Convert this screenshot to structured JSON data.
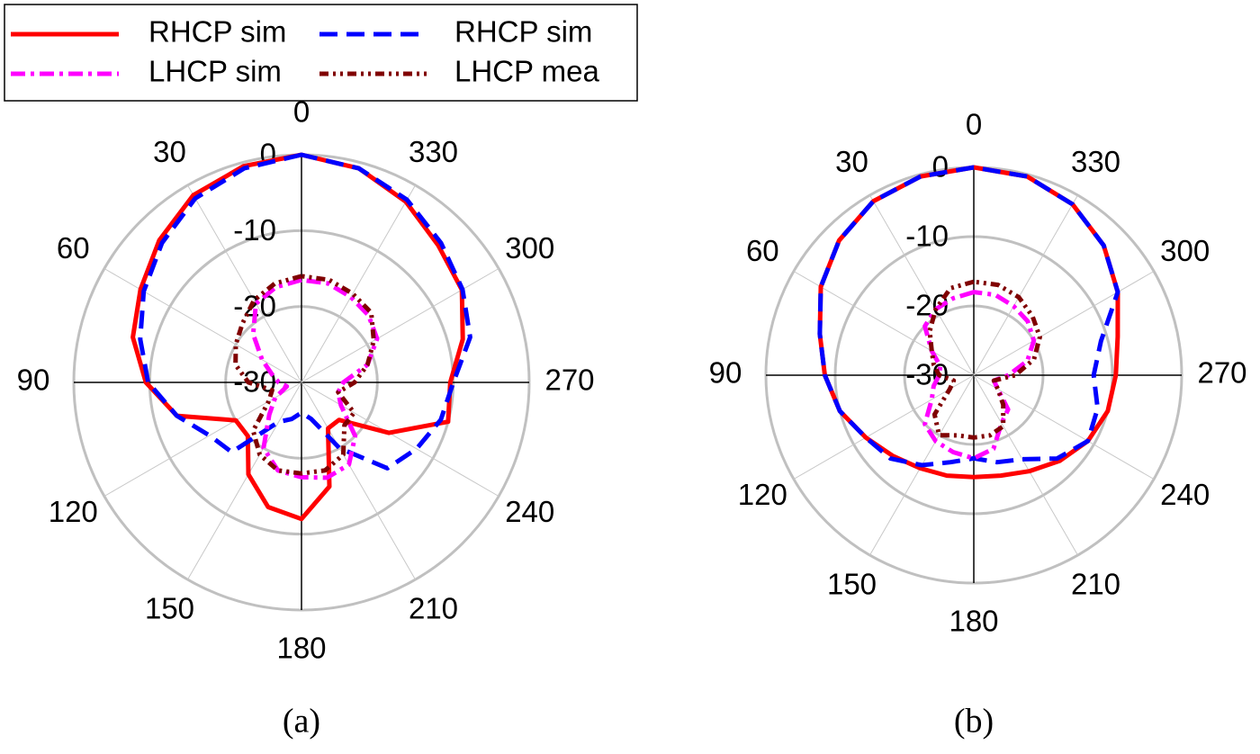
{
  "chart_data": [
    {
      "type": "polar",
      "caption": "(a)",
      "theta": [
        0,
        15,
        30,
        45,
        60,
        75,
        90,
        105,
        120,
        135,
        150,
        165,
        180,
        195,
        210,
        225,
        240,
        255,
        270,
        285,
        300,
        315,
        330,
        345
      ],
      "thetaticks": [
        0,
        30,
        60,
        90,
        120,
        150,
        180,
        210,
        240,
        270,
        300,
        330
      ],
      "rlim": [
        -30,
        0
      ],
      "rticks": [
        0,
        -10,
        -20,
        -30
      ],
      "grid": true,
      "legend": "upper left",
      "series": [
        {
          "name": "RHCP sim",
          "color": "#ff0000",
          "linestyle": "solid",
          "values": [
            0,
            -0.5,
            -1.5,
            -3.5,
            -5.5,
            -7,
            -9.5,
            -13,
            -20,
            -20,
            -16,
            -13,
            -12,
            -15.8,
            -23,
            -23,
            -16.7,
            -10,
            -10.4,
            -8,
            -5.6,
            -4.5,
            -2.5,
            -0.8
          ]
        },
        {
          "name": "RHCP sim",
          "color": "#0000ff",
          "linestyle": "dashed",
          "values": [
            0,
            -0.8,
            -2,
            -4,
            -6,
            -8,
            -9.8,
            -13,
            -16,
            -17,
            -24,
            -25,
            -26,
            -25,
            -20,
            -14,
            -12.5,
            -11,
            -10,
            -7,
            -5.5,
            -4,
            -2.2,
            -0.8
          ]
        },
        {
          "name": "LHCP sim",
          "color": "#ff00ff",
          "linestyle": "dashdot",
          "values": [
            -16.5,
            -17,
            -18,
            -21,
            -24,
            -26,
            -27,
            -28,
            -26,
            -24,
            -20,
            -18,
            -17.5,
            -17,
            -17.5,
            -20,
            -24,
            -25,
            -24.5,
            -21,
            -18.5,
            -17.5,
            -17,
            -16.5
          ]
        },
        {
          "name": "LHCP mea",
          "color": "#800000",
          "linestyle": "dashdotdot",
          "values": [
            -16,
            -16.5,
            -17.5,
            -19,
            -20,
            -21,
            -23,
            -26,
            -25,
            -21,
            -19,
            -18,
            -18,
            -18,
            -19,
            -22,
            -22,
            -25,
            -23,
            -21,
            -19,
            -17,
            -16.5,
            -16
          ]
        }
      ]
    },
    {
      "type": "polar",
      "caption": "(b)",
      "theta": [
        0,
        15,
        30,
        45,
        60,
        75,
        90,
        105,
        120,
        135,
        150,
        165,
        180,
        195,
        210,
        225,
        240,
        255,
        270,
        285,
        300,
        315,
        330,
        345
      ],
      "thetaticks": [
        0,
        30,
        60,
        90,
        120,
        150,
        180,
        210,
        240,
        270,
        300,
        330
      ],
      "rlim": [
        -30,
        0
      ],
      "rticks": [
        0,
        -10,
        -20,
        -30
      ],
      "grid": true,
      "series": [
        {
          "color": "#ff0000",
          "linestyle": "solid",
          "values": [
            0,
            -0.3,
            -1,
            -2.5,
            -4.5,
            -7,
            -8.5,
            -10,
            -12,
            -13.5,
            -14.5,
            -15,
            -15.3,
            -15,
            -14,
            -12.5,
            -11,
            -10,
            -9.5,
            -8.5,
            -6,
            -3.5,
            -1.5,
            -0.3
          ]
        },
        {
          "color": "#0000ff",
          "linestyle": "dashed",
          "values": [
            0,
            -0.3,
            -1,
            -2.5,
            -4.5,
            -7,
            -8.5,
            -10,
            -12,
            -13,
            -15,
            -17,
            -18,
            -17,
            -16,
            -13,
            -11,
            -11.5,
            -12.7,
            -11,
            -6,
            -3.5,
            -1.5,
            -0.3
          ]
        },
        {
          "color": "#ff00ff",
          "linestyle": "dashdot",
          "values": [
            -18,
            -18.5,
            -19,
            -20,
            -23,
            -25,
            -25,
            -24,
            -23,
            -20,
            -19,
            -18.5,
            -18,
            -19,
            -22,
            -23,
            -26,
            -27,
            -25,
            -22,
            -20,
            -19,
            -18.5,
            -18
          ]
        },
        {
          "color": "#800000",
          "linestyle": "dashdotdot",
          "values": [
            -16.5,
            -17,
            -19,
            -21,
            -23,
            -24,
            -25,
            -27,
            -26,
            -22,
            -20,
            -21,
            -21,
            -21,
            -21.5,
            -24,
            -26,
            -27,
            -24,
            -21,
            -19,
            -18,
            -17,
            -16.5
          ]
        }
      ]
    }
  ]
}
